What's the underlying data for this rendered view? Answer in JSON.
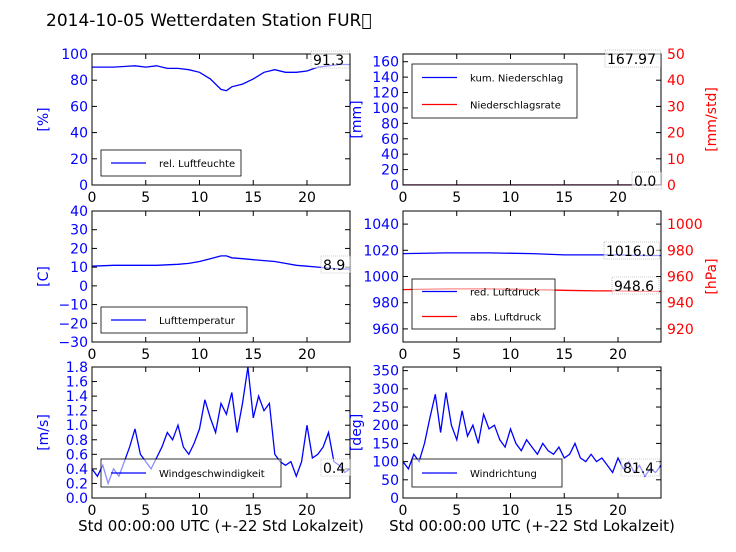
{
  "figure_title": "2014-10-05 Wetterdaten Station FUR\u0000",
  "chart_data": [
    {
      "id": "feuchte",
      "type": "line",
      "ylabel": "[%]",
      "ylim": [
        0,
        100
      ],
      "yticks": [
        0,
        20,
        40,
        60,
        80,
        100
      ],
      "xlim": [
        0,
        24
      ],
      "xticks": [
        0,
        5,
        10,
        15,
        20
      ],
      "xlabel": "",
      "annotation": "91.3",
      "legend_position": "lower-left",
      "series": [
        {
          "name": "rel. Luftfeuchte",
          "color": "#0000ff",
          "x": [
            0,
            2,
            4,
            5,
            6,
            7,
            8,
            9,
            10,
            11,
            12,
            12.5,
            13,
            14,
            15,
            16,
            17,
            18,
            19,
            20,
            21,
            22,
            23,
            24
          ],
          "y": [
            90,
            90,
            91,
            90,
            91,
            89,
            89,
            88,
            86,
            81,
            73,
            72,
            75,
            77,
            81,
            86,
            88,
            86,
            86,
            87,
            90,
            91,
            92,
            92
          ]
        }
      ]
    },
    {
      "id": "niederschlag",
      "type": "line",
      "ylabel": "[mm]",
      "ylim": [
        0,
        170
      ],
      "yticks": [
        0,
        20,
        40,
        60,
        80,
        100,
        120,
        140,
        160
      ],
      "ylabel_right": "[mm/std]",
      "ylim_right": [
        0,
        50
      ],
      "yticks_right": [
        0,
        10,
        20,
        30,
        40,
        50
      ],
      "xlim": [
        0,
        24
      ],
      "xticks": [
        0,
        5,
        10,
        15,
        20
      ],
      "xlabel": "",
      "annotation": "167.97",
      "annotation2": "0.0",
      "legend_position": "upper-left",
      "series": [
        {
          "name": "kum. Niederschlag",
          "color": "#0000ff",
          "axis": "left",
          "x": [
            0,
            24
          ],
          "y": [
            0,
            0
          ]
        },
        {
          "name": "Niederschlagsrate",
          "color": "#ff0000",
          "axis": "right",
          "x": [
            0,
            24
          ],
          "y": [
            0,
            0
          ]
        }
      ]
    },
    {
      "id": "temperatur",
      "type": "line",
      "ylabel": "[C]",
      "ylim": [
        -30,
        40
      ],
      "yticks": [
        -30,
        -20,
        -10,
        0,
        10,
        20,
        30,
        40
      ],
      "xlim": [
        0,
        24
      ],
      "xticks": [
        0,
        5,
        10,
        15,
        20
      ],
      "xlabel": "",
      "annotation": "8.9",
      "legend_position": "lower-left",
      "series": [
        {
          "name": "Lufttemperatur",
          "color": "#0000ff",
          "x": [
            0,
            2,
            4,
            6,
            8,
            9,
            10,
            11,
            12,
            12.5,
            13,
            14,
            15,
            16,
            17,
            18,
            19,
            20,
            21,
            22,
            23,
            24
          ],
          "y": [
            10.5,
            11,
            11,
            11,
            11.5,
            12,
            13,
            14.5,
            16,
            16,
            15,
            14.5,
            14,
            13.5,
            13,
            12,
            11,
            10.5,
            10,
            9.5,
            9,
            9
          ]
        }
      ]
    },
    {
      "id": "luftdruck",
      "type": "line",
      "ylabel": "",
      "ylim": [
        950,
        1050
      ],
      "yticks": [
        960,
        980,
        1000,
        1020,
        1040
      ],
      "ylabel_right": "[hPa]",
      "ylim_right": [
        910,
        1010
      ],
      "yticks_right": [
        920,
        940,
        960,
        980,
        1000
      ],
      "xlim": [
        0,
        24
      ],
      "xticks": [
        0,
        5,
        10,
        15,
        20
      ],
      "xlabel": "",
      "annotation": "1016.0",
      "annotation2": "948.6",
      "legend_position": "lower-left",
      "series": [
        {
          "name": "red. Luftdruck",
          "color": "#0000ff",
          "axis": "left",
          "x": [
            0,
            4,
            8,
            12,
            15,
            18,
            20,
            22,
            24
          ],
          "y": [
            1017.5,
            1018,
            1018,
            1017.5,
            1016.5,
            1016.5,
            1016.5,
            1016,
            1016
          ]
        },
        {
          "name": "abs. Luftdruck",
          "color": "#ff0000",
          "axis": "right",
          "x": [
            0,
            4,
            8,
            12,
            15,
            18,
            20,
            22,
            24
          ],
          "y": [
            950,
            950.5,
            950.5,
            950,
            949.5,
            949,
            949,
            948.6,
            948.6
          ]
        }
      ]
    },
    {
      "id": "wind",
      "type": "line",
      "ylabel": "[m/s]",
      "ylim": [
        0,
        1.8
      ],
      "yticks": [
        0.0,
        0.2,
        0.4,
        0.6,
        0.8,
        1.0,
        1.2,
        1.4,
        1.6,
        1.8
      ],
      "xlim": [
        0,
        24
      ],
      "xticks": [
        0,
        5,
        10,
        15,
        20
      ],
      "xlabel": "Std 00:00:00 UTC (+-22 Std Lokalzeit)",
      "annotation": "0.4",
      "legend_position": "lower-center",
      "series": [
        {
          "name": "Windgeschwindigkeit",
          "color": "#0000ff",
          "x": [
            0,
            0.5,
            1,
            1.5,
            2,
            2.5,
            3,
            3.5,
            4,
            4.5,
            5,
            5.5,
            6,
            6.5,
            7,
            7.5,
            8,
            8.5,
            9,
            9.5,
            10,
            10.5,
            11,
            11.5,
            12,
            12.5,
            13,
            13.5,
            14,
            14.5,
            15,
            15.5,
            16,
            16.5,
            17,
            17.5,
            18,
            18.5,
            19,
            19.5,
            20,
            20.5,
            21,
            21.5,
            22,
            22.5,
            23,
            23.5,
            24
          ],
          "y": [
            0.4,
            0.3,
            0.45,
            0.2,
            0.4,
            0.3,
            0.5,
            0.7,
            0.95,
            0.6,
            0.5,
            0.4,
            0.55,
            0.7,
            0.9,
            0.8,
            1.0,
            0.7,
            0.6,
            0.75,
            0.95,
            1.35,
            1.1,
            0.9,
            1.3,
            1.15,
            1.45,
            0.9,
            1.3,
            1.8,
            1.1,
            1.4,
            1.2,
            1.3,
            0.6,
            0.5,
            0.45,
            0.5,
            0.3,
            0.5,
            1.0,
            0.55,
            0.6,
            0.7,
            0.9,
            0.5,
            0.45,
            0.35,
            0.4
          ]
        }
      ]
    },
    {
      "id": "windrichtung",
      "type": "line",
      "ylabel": "[deg]",
      "ylim": [
        0,
        360
      ],
      "yticks": [
        0,
        50,
        100,
        150,
        200,
        250,
        300,
        350
      ],
      "xlim": [
        0,
        24
      ],
      "xticks": [
        0,
        5,
        10,
        15,
        20
      ],
      "xlabel": "Std 00:00:00 UTC (+-22 Std Lokalzeit)",
      "annotation": "81.4",
      "legend_position": "lower-center",
      "series": [
        {
          "name": "Windrichtung",
          "color": "#0000ff",
          "x": [
            0,
            0.5,
            1,
            1.5,
            2,
            2.5,
            3,
            3.5,
            4,
            4.5,
            5,
            5.5,
            6,
            6.5,
            7,
            7.5,
            8,
            8.5,
            9,
            9.5,
            10,
            10.5,
            11,
            11.5,
            12,
            12.5,
            13,
            13.5,
            14,
            14.5,
            15,
            15.5,
            16,
            16.5,
            17,
            17.5,
            18,
            18.5,
            19,
            19.5,
            20,
            20.5,
            21,
            21.5,
            22,
            22.5,
            23,
            23.5,
            24
          ],
          "y": [
            100,
            80,
            120,
            100,
            150,
            220,
            285,
            180,
            290,
            200,
            160,
            240,
            170,
            200,
            150,
            230,
            190,
            200,
            160,
            140,
            190,
            150,
            130,
            160,
            140,
            120,
            150,
            130,
            120,
            140,
            110,
            120,
            150,
            110,
            100,
            120,
            100,
            110,
            90,
            70,
            110,
            80,
            100,
            70,
            90,
            60,
            80,
            70,
            90
          ]
        }
      ]
    }
  ]
}
